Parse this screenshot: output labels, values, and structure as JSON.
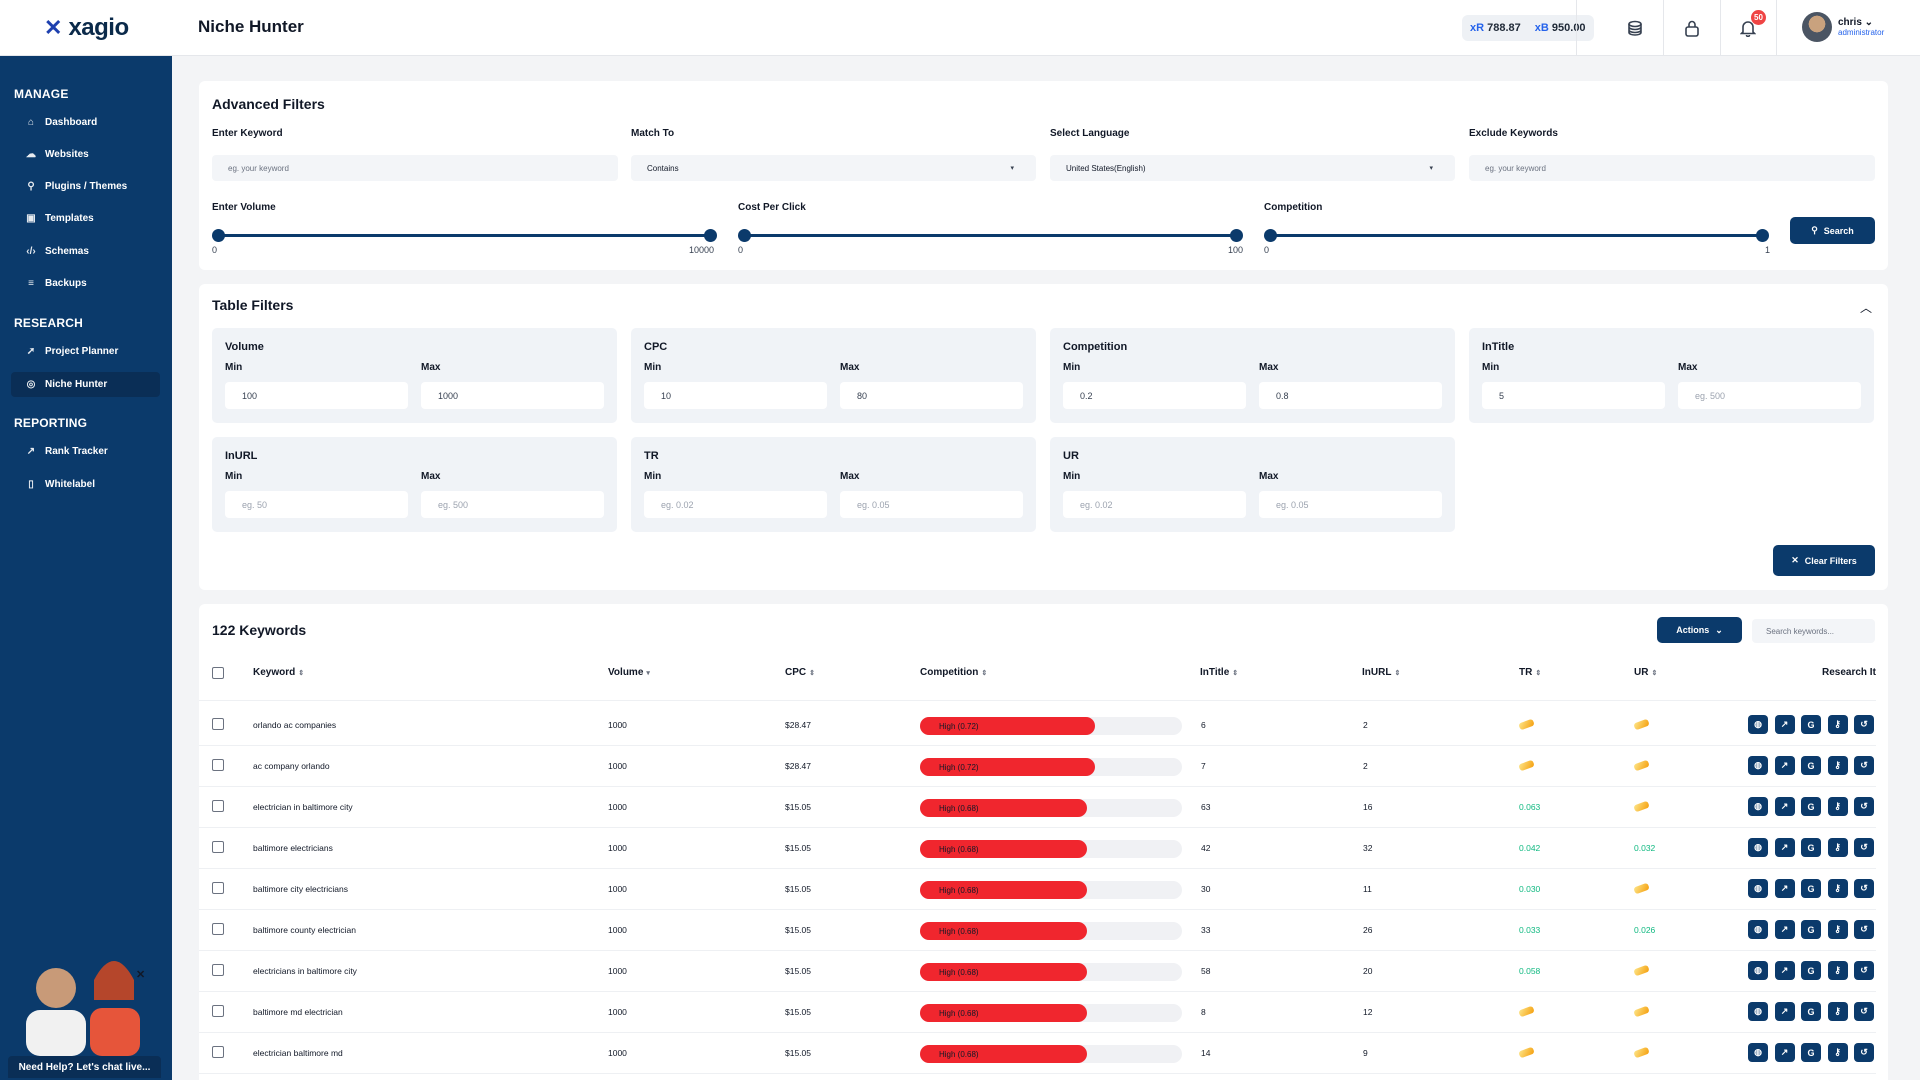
{
  "app": {
    "logo_text": "xagio",
    "page_title": "Niche Hunter"
  },
  "topbar": {
    "credits": [
      {
        "prefix": "xR",
        "value": "788.87"
      },
      {
        "prefix": "xB",
        "value": "950.00"
      }
    ],
    "notifications_count": "50",
    "user": {
      "name": "chris",
      "role": "administrator"
    }
  },
  "sidebar": {
    "sections": [
      {
        "title": "MANAGE",
        "items": [
          "Dashboard",
          "Websites",
          "Plugins / Themes",
          "Templates",
          "Schemas",
          "Backups"
        ]
      },
      {
        "title": "RESEARCH",
        "items": [
          "Project Planner",
          "Niche Hunter"
        ]
      },
      {
        "title": "REPORTING",
        "items": [
          "Rank Tracker",
          "Whitelabel"
        ]
      }
    ],
    "active_item": "Niche Hunter",
    "help_text": "Need Help? Let's chat live..."
  },
  "advanced_filters": {
    "title": "Advanced Filters",
    "keyword": {
      "label": "Enter Keyword",
      "placeholder": "eg. your keyword"
    },
    "match_to": {
      "label": "Match To",
      "value": "Contains"
    },
    "language": {
      "label": "Select Language",
      "value": "United States(English)"
    },
    "exclude": {
      "label": "Exclude Keywords",
      "placeholder": "eg. your keyword"
    },
    "volume": {
      "label": "Enter Volume",
      "min": "0",
      "max": "10000"
    },
    "cpc": {
      "label": "Cost Per Click",
      "min": "0",
      "max": "100"
    },
    "competition": {
      "label": "Competition",
      "min": "0",
      "max": "1"
    },
    "search_button": "Search"
  },
  "table_filters": {
    "title": "Table Filters",
    "min_label": "Min",
    "max_label": "Max",
    "groups": [
      {
        "name": "Volume",
        "min": "100",
        "max": "1000",
        "min_ph": false,
        "max_ph": false
      },
      {
        "name": "CPC",
        "min": "10",
        "max": "80",
        "min_ph": false,
        "max_ph": false
      },
      {
        "name": "Competition",
        "min": "0.2",
        "max": "0.8",
        "min_ph": false,
        "max_ph": false
      },
      {
        "name": "InTitle",
        "min": "5",
        "max": "eg. 500",
        "min_ph": false,
        "max_ph": true
      },
      {
        "name": "InURL",
        "min": "eg. 50",
        "max": "eg. 500",
        "min_ph": true,
        "max_ph": true
      },
      {
        "name": "TR",
        "min": "eg. 0.02",
        "max": "eg. 0.05",
        "min_ph": true,
        "max_ph": true
      },
      {
        "name": "UR",
        "min": "eg. 0.02",
        "max": "eg. 0.05",
        "min_ph": true,
        "max_ph": true
      }
    ],
    "clear_button": "Clear Filters"
  },
  "keywords_table": {
    "count_title": "122 Keywords",
    "actions_button": "Actions",
    "search_placeholder": "Search keywords...",
    "columns": [
      "Keyword",
      "Volume",
      "CPC",
      "Competition",
      "InTitle",
      "InURL",
      "TR",
      "UR",
      "Research It"
    ],
    "rows": [
      {
        "keyword": "orlando ac companies",
        "volume": "1000",
        "cpc": "$28.47",
        "competition_label": "High (0.72)",
        "competition": 0.72,
        "intitle": "6",
        "inurl": "2",
        "tr": "",
        "ur": ""
      },
      {
        "keyword": "ac company orlando",
        "volume": "1000",
        "cpc": "$28.47",
        "competition_label": "High (0.72)",
        "competition": 0.72,
        "intitle": "7",
        "inurl": "2",
        "tr": "",
        "ur": ""
      },
      {
        "keyword": "electrician in baltimore city",
        "volume": "1000",
        "cpc": "$15.05",
        "competition_label": "High (0.68)",
        "competition": 0.68,
        "intitle": "63",
        "inurl": "16",
        "tr": "0.063",
        "ur": ""
      },
      {
        "keyword": "baltimore electricians",
        "volume": "1000",
        "cpc": "$15.05",
        "competition_label": "High (0.68)",
        "competition": 0.68,
        "intitle": "42",
        "inurl": "32",
        "tr": "0.042",
        "ur": "0.032"
      },
      {
        "keyword": "baltimore city electricians",
        "volume": "1000",
        "cpc": "$15.05",
        "competition_label": "High (0.68)",
        "competition": 0.68,
        "intitle": "30",
        "inurl": "11",
        "tr": "0.030",
        "ur": ""
      },
      {
        "keyword": "baltimore county electrician",
        "volume": "1000",
        "cpc": "$15.05",
        "competition_label": "High (0.68)",
        "competition": 0.68,
        "intitle": "33",
        "inurl": "26",
        "tr": "0.033",
        "ur": "0.026"
      },
      {
        "keyword": "electricians in baltimore city",
        "volume": "1000",
        "cpc": "$15.05",
        "competition_label": "High (0.68)",
        "competition": 0.68,
        "intitle": "58",
        "inurl": "20",
        "tr": "0.058",
        "ur": ""
      },
      {
        "keyword": "baltimore md electrician",
        "volume": "1000",
        "cpc": "$15.05",
        "competition_label": "High (0.68)",
        "competition": 0.68,
        "intitle": "8",
        "inurl": "12",
        "tr": "",
        "ur": ""
      },
      {
        "keyword": "electrician baltimore md",
        "volume": "1000",
        "cpc": "$15.05",
        "competition_label": "High (0.68)",
        "competition": 0.68,
        "intitle": "14",
        "inurl": "9",
        "tr": "",
        "ur": ""
      }
    ],
    "research_icons": [
      "globe-icon",
      "trend-icon",
      "google-icon",
      "key-icon",
      "history-icon"
    ]
  },
  "colors": {
    "brand": "#0b3a6b",
    "high_competition": "#f0262e",
    "metric_green": "#10b981"
  }
}
